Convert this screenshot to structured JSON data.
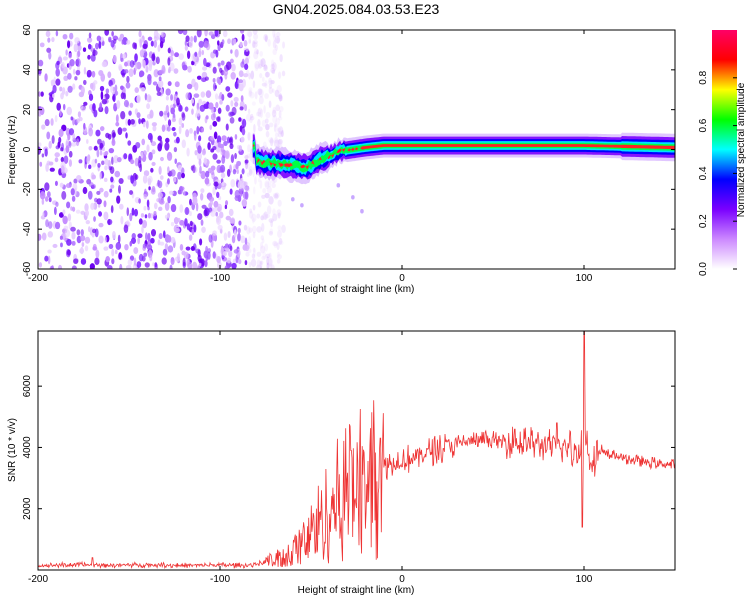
{
  "title": "GN04.2025.084.03.53.E23",
  "chart_data": [
    {
      "type": "heatmap",
      "title": "GN04.2025.084.03.53.E23",
      "xlabel": "Height of straight line (km)",
      "ylabel": "Frequency (Hz)",
      "xlim": [
        -200,
        150
      ],
      "ylim": [
        -60,
        60
      ],
      "x_ticks": [
        -200,
        -100,
        0,
        100
      ],
      "x_tick_labels": [
        "-200",
        "-100",
        "0",
        "100"
      ],
      "y_ticks": [
        -60,
        -40,
        -20,
        0,
        20,
        40,
        60
      ],
      "y_tick_labels": [
        "-60",
        "-40",
        "-20",
        "0",
        "20",
        "40",
        "60"
      ],
      "colorbar": {
        "label": "Normalized spectral amplitude",
        "range": [
          0,
          1
        ],
        "ticks": [
          0.0,
          0.2,
          0.4,
          0.6,
          0.8
        ],
        "tick_labels": [
          "0.0",
          "0.2",
          "0.4",
          "0.6",
          "0.8"
        ],
        "colors": [
          "#ffffff",
          "#cc88ff",
          "#7a00ff",
          "#0000ff",
          "#00ffff",
          "#00ff00",
          "#ffff00",
          "#ff0000",
          "#ff0066"
        ]
      },
      "noise_region_km": [
        -200,
        -65
      ],
      "signal_center_hz": [
        {
          "x": -80,
          "y": -6
        },
        {
          "x": -70,
          "y": -7
        },
        {
          "x": -60,
          "y": -8
        },
        {
          "x": -52,
          "y": -9
        },
        {
          "x": -45,
          "y": -5
        },
        {
          "x": -35,
          "y": -1
        },
        {
          "x": -20,
          "y": 1
        },
        {
          "x": -10,
          "y": 2
        },
        {
          "x": 0,
          "y": 2
        },
        {
          "x": 50,
          "y": 2
        },
        {
          "x": 100,
          "y": 2
        },
        {
          "x": 150,
          "y": 1
        }
      ]
    },
    {
      "type": "line",
      "xlabel": "Height of straight line (km)",
      "ylabel": "SNR (10 * v/v)",
      "xlim": [
        -200,
        150
      ],
      "ylim": [
        0,
        7800
      ],
      "x_ticks": [
        -200,
        -100,
        0,
        100
      ],
      "x_tick_labels": [
        "-200",
        "-100",
        "0",
        "100"
      ],
      "y_ticks": [
        2000,
        4000,
        6000
      ],
      "y_tick_labels": [
        "2000",
        "4000",
        "6000"
      ],
      "color": "#ee3333",
      "x": [
        -200,
        -180,
        -160,
        -140,
        -120,
        -100,
        -85,
        -75,
        -65,
        -55,
        -45,
        -35,
        -25,
        -15,
        -5,
        5,
        15,
        25,
        35,
        45,
        55,
        65,
        75,
        85,
        92,
        97,
        100,
        103,
        110,
        120,
        130,
        140,
        150
      ],
      "y": [
        150,
        170,
        160,
        170,
        150,
        160,
        150,
        250,
        400,
        800,
        1600,
        2300,
        2900,
        3300,
        3500,
        3650,
        3850,
        4050,
        4180,
        4250,
        4200,
        4150,
        4100,
        4050,
        3950,
        3800,
        4600,
        3700,
        3800,
        3700,
        3550,
        3480,
        3420
      ],
      "spikes": [
        {
          "x": -170,
          "y": 400
        },
        {
          "x": -45,
          "y": 1900
        },
        {
          "x": -28,
          "y": 3900
        },
        {
          "x": -12,
          "y": 4300
        },
        {
          "x": 62,
          "y": 4600
        },
        {
          "x": 85,
          "y": 4800
        },
        {
          "x": 100,
          "y": 7800
        },
        {
          "x": 99,
          "y": 1400
        }
      ]
    }
  ]
}
